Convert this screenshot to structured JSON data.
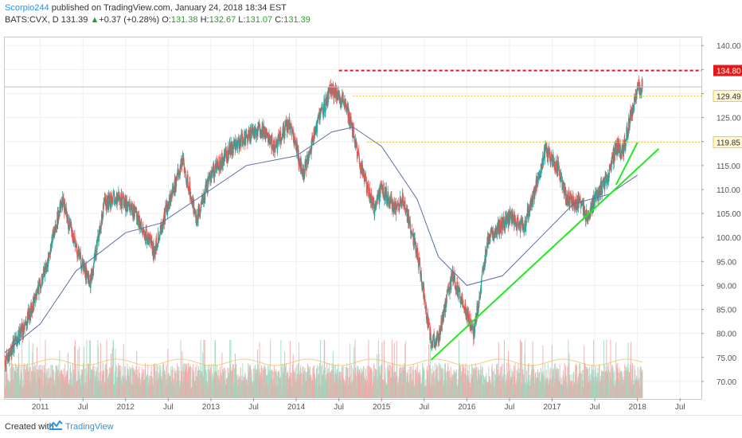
{
  "header": {
    "author": "Scorpio244",
    "published_text": "published on TradingView.com, January 24, 2018 18:34 EST",
    "symbol": "BATS:CVX, D",
    "last": "131.39",
    "up_arrow": "▲",
    "change": "+0.37 (+0.28%)",
    "o_label": "O:",
    "o_value": "131.38",
    "h_label": "H:",
    "h_value": "132.67",
    "l_label": "L:",
    "l_value": "131.07",
    "c_label": "C:",
    "c_value": "131.39"
  },
  "footer": {
    "created_with": "Created with",
    "brand": "TradingView"
  },
  "colors": {
    "up": "#26a69a",
    "down": "#ef5350",
    "ma": "#5b6ea8",
    "trendline": "#22e822",
    "resistance_red": "#e31a1c",
    "resistance_yellow": "#f5c542",
    "brand": "#2196f3"
  },
  "chart_data": {
    "type": "candlestick",
    "x_tick_labels": [
      "2011",
      "Jul",
      "2012",
      "Jul",
      "2013",
      "Jul",
      "2014",
      "Jul",
      "2015",
      "Jul",
      "2016",
      "Jul",
      "2017",
      "Jul",
      "2018",
      "Jul"
    ],
    "x_ticks": [
      "2011-01",
      "2011-07",
      "2012-01",
      "2012-07",
      "2013-01",
      "2013-07",
      "2014-01",
      "2014-07",
      "2015-01",
      "2015-07",
      "2016-01",
      "2016-07",
      "2017-01",
      "2017-07",
      "2018-01",
      "2018-07"
    ],
    "y_ticks": [
      70,
      75,
      80,
      85,
      90,
      95,
      100,
      105,
      110,
      115,
      120,
      125,
      130,
      135,
      140
    ],
    "ylim": [
      66.5,
      141.7
    ],
    "x_range": [
      "2010-08",
      "2018-10"
    ],
    "price_anchors": [
      [
        "2010-08",
        74
      ],
      [
        "2010-11",
        82
      ],
      [
        "2011-02",
        95
      ],
      [
        "2011-04",
        108
      ],
      [
        "2011-06",
        98
      ],
      [
        "2011-08",
        90
      ],
      [
        "2011-10",
        107
      ],
      [
        "2011-12",
        108
      ],
      [
        "2012-02",
        106
      ],
      [
        "2012-05",
        97
      ],
      [
        "2012-07",
        107
      ],
      [
        "2012-09",
        116
      ],
      [
        "2012-11",
        104
      ],
      [
        "2013-01",
        113
      ],
      [
        "2013-04",
        119
      ],
      [
        "2013-06",
        121
      ],
      [
        "2013-08",
        123
      ],
      [
        "2013-10",
        119
      ],
      [
        "2013-12",
        124
      ],
      [
        "2014-02",
        113
      ],
      [
        "2014-04",
        124
      ],
      [
        "2014-06",
        131
      ],
      [
        "2014-08",
        128
      ],
      [
        "2014-10",
        115
      ],
      [
        "2014-12",
        106
      ],
      [
        "2015-01",
        110
      ],
      [
        "2015-03",
        106
      ],
      [
        "2015-04",
        108
      ],
      [
        "2015-06",
        97
      ],
      [
        "2015-08",
        78
      ],
      [
        "2015-09",
        79
      ],
      [
        "2015-11",
        92
      ],
      [
        "2016-01",
        84
      ],
      [
        "2016-02",
        80
      ],
      [
        "2016-04",
        100
      ],
      [
        "2016-07",
        104
      ],
      [
        "2016-09",
        102
      ],
      [
        "2016-11",
        112
      ],
      [
        "2016-12",
        118
      ],
      [
        "2017-02",
        114
      ],
      [
        "2017-03",
        108
      ],
      [
        "2017-05",
        107
      ],
      [
        "2017-06",
        104
      ],
      [
        "2017-07",
        108
      ],
      [
        "2017-09",
        113
      ],
      [
        "2017-10",
        119
      ],
      [
        "2017-11",
        118
      ],
      [
        "2017-12",
        125
      ],
      [
        "2018-01",
        131.4
      ]
    ],
    "moving_average": [
      [
        "2010-08",
        76
      ],
      [
        "2011-01",
        82
      ],
      [
        "2011-06",
        93
      ],
      [
        "2012-01",
        101
      ],
      [
        "2012-06",
        103
      ],
      [
        "2013-01",
        110
      ],
      [
        "2013-06",
        115
      ],
      [
        "2014-01",
        117
      ],
      [
        "2014-06",
        122
      ],
      [
        "2014-09",
        123
      ],
      [
        "2015-01",
        119
      ],
      [
        "2015-06",
        108
      ],
      [
        "2015-09",
        96
      ],
      [
        "2016-01",
        90
      ],
      [
        "2016-06",
        92
      ],
      [
        "2016-12",
        101
      ],
      [
        "2017-04",
        107
      ],
      [
        "2017-09",
        109
      ],
      [
        "2018-01",
        113
      ]
    ],
    "horizontal_levels": [
      {
        "value": 134.8,
        "start": "2014-07",
        "style": "red-dashed",
        "label": "134.80"
      },
      {
        "value": 129.49,
        "start": "2014-09",
        "style": "yellow-dotted",
        "label": "129.49"
      },
      {
        "value": 119.85,
        "start": "2014-11",
        "style": "yellow-dotted",
        "label": "119.85"
      }
    ],
    "trendlines": [
      {
        "from": [
          "2015-08",
          74.5
        ],
        "to": [
          "2018-04",
          118.5
        ]
      },
      {
        "from": [
          "2017-10",
          111
        ],
        "to": [
          "2018-01",
          119.8
        ]
      }
    ],
    "current_price_line": 131.39
  }
}
